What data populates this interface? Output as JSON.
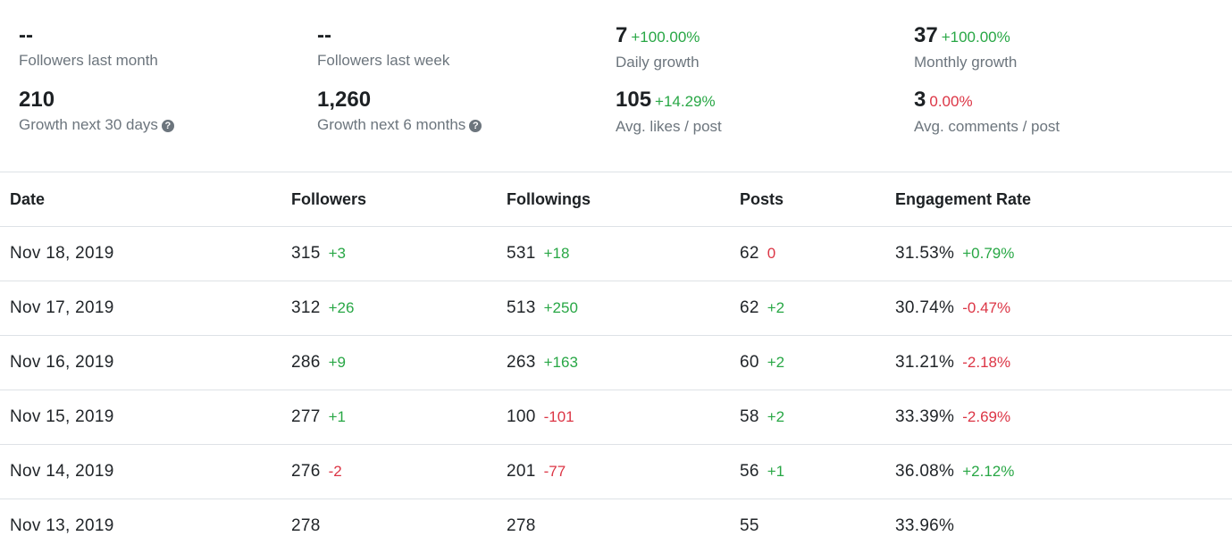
{
  "stats": [
    {
      "value": "--",
      "change": "",
      "change_color": "",
      "label": "Followers last month",
      "help": false
    },
    {
      "value": "--",
      "change": "",
      "change_color": "",
      "label": "Followers last week",
      "help": false
    },
    {
      "value": "7",
      "change": "+100.00%",
      "change_color": "pos",
      "label": "Daily growth",
      "help": false
    },
    {
      "value": "37",
      "change": "+100.00%",
      "change_color": "pos",
      "label": "Monthly growth",
      "help": false
    },
    {
      "value": "210",
      "change": "",
      "change_color": "",
      "label": "Growth next 30 days",
      "help": true
    },
    {
      "value": "1,260",
      "change": "",
      "change_color": "",
      "label": "Growth next 6 months",
      "help": true
    },
    {
      "value": "105",
      "change": "+14.29%",
      "change_color": "pos",
      "label": "Avg. likes / post",
      "help": false
    },
    {
      "value": "3",
      "change": "0.00%",
      "change_color": "neg",
      "label": "Avg. comments / post",
      "help": false
    }
  ],
  "table": {
    "headers": [
      "Date",
      "Followers",
      "Followings",
      "Posts",
      "Engagement Rate"
    ],
    "rows": [
      {
        "date": "Nov 18, 2019",
        "followers": "315",
        "followers_delta": "+3",
        "followings": "531",
        "followings_delta": "+18",
        "posts": "62",
        "posts_delta": "0",
        "engagement": "31.53%",
        "engagement_delta": "+0.79%"
      },
      {
        "date": "Nov 17, 2019",
        "followers": "312",
        "followers_delta": "+26",
        "followings": "513",
        "followings_delta": "+250",
        "posts": "62",
        "posts_delta": "+2",
        "engagement": "30.74%",
        "engagement_delta": "-0.47%"
      },
      {
        "date": "Nov 16, 2019",
        "followers": "286",
        "followers_delta": "+9",
        "followings": "263",
        "followings_delta": "+163",
        "posts": "60",
        "posts_delta": "+2",
        "engagement": "31.21%",
        "engagement_delta": "-2.18%"
      },
      {
        "date": "Nov 15, 2019",
        "followers": "277",
        "followers_delta": "+1",
        "followings": "100",
        "followings_delta": "-101",
        "posts": "58",
        "posts_delta": "+2",
        "engagement": "33.39%",
        "engagement_delta": "-2.69%"
      },
      {
        "date": "Nov 14, 2019",
        "followers": "276",
        "followers_delta": "-2",
        "followings": "201",
        "followings_delta": "-77",
        "posts": "56",
        "posts_delta": "+1",
        "engagement": "36.08%",
        "engagement_delta": "+2.12%"
      },
      {
        "date": "Nov 13, 2019",
        "followers": "278",
        "followers_delta": "",
        "followings": "278",
        "followings_delta": "",
        "posts": "55",
        "posts_delta": "",
        "engagement": "33.96%",
        "engagement_delta": ""
      }
    ]
  },
  "colors": {
    "positive": "#28a745",
    "negative": "#dc3545",
    "help_icon": "help-circle-icon"
  }
}
